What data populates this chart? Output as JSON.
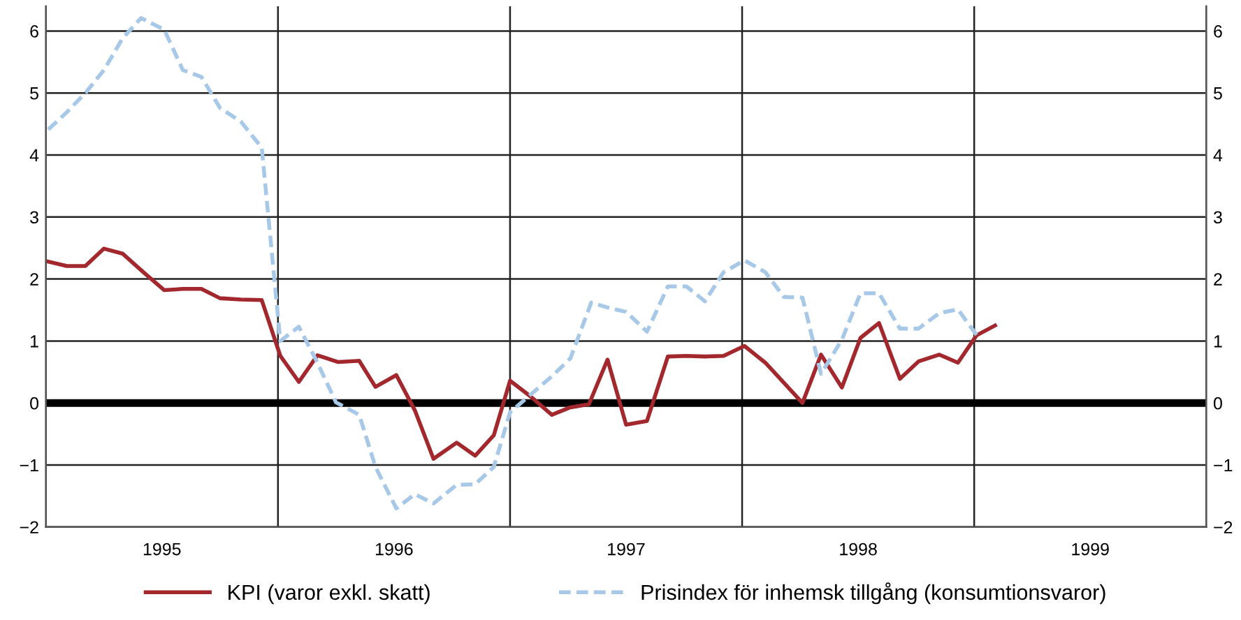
{
  "chart_data": {
    "type": "line",
    "xlim": [
      1995,
      2000
    ],
    "xticks": [
      {
        "value": 1995,
        "label": null
      },
      {
        "value": 1995.5,
        "label": "1995"
      },
      {
        "value": 1996,
        "label": null
      },
      {
        "value": 1996.5,
        "label": "1996"
      },
      {
        "value": 1997,
        "label": null
      },
      {
        "value": 1997.5,
        "label": "1997"
      },
      {
        "value": 1998,
        "label": null
      },
      {
        "value": 1998.5,
        "label": "1998"
      },
      {
        "value": 1999,
        "label": null
      },
      {
        "value": 1999.5,
        "label": "1999"
      },
      {
        "value": 2000,
        "label": null
      }
    ],
    "ylim": [
      -2,
      6.4
    ],
    "yticks": [
      {
        "value": -2,
        "label": "−2"
      },
      {
        "value": -1,
        "label": "−1"
      },
      0,
      1,
      2,
      3,
      4,
      5,
      6
    ],
    "y2lim": [
      -2,
      6.4
    ],
    "y2ticks": [
      {
        "value": -2,
        "label": "−2"
      },
      {
        "value": -1,
        "label": "−1"
      },
      0,
      1,
      2,
      3,
      4,
      5,
      6
    ],
    "grid": true,
    "legend": "bottom",
    "marker": "none",
    "ref_lines": [
      {
        "axis": "y",
        "value": 0,
        "color": "#000000"
      }
    ],
    "series": [
      {
        "name": "KPI (varor exkl. skatt)",
        "color": "#a3282e",
        "line_style": "solid",
        "x": [
          1995.01,
          1995.09,
          1995.17,
          1995.25,
          1995.33,
          1995.42,
          1995.51,
          1995.59,
          1995.67,
          1995.75,
          1995.84,
          1995.93,
          1996.01,
          1996.09,
          1996.17,
          1996.26,
          1996.35,
          1996.42,
          1996.51,
          1996.59,
          1996.67,
          1996.77,
          1996.85,
          1996.93,
          1997.0,
          1997.09,
          1997.18,
          1997.26,
          1997.34,
          1997.42,
          1997.5,
          1997.59,
          1997.68,
          1997.76,
          1997.84,
          1997.92,
          1998.01,
          1998.1,
          1998.26,
          1998.34,
          1998.43,
          1998.51,
          1998.59,
          1998.68,
          1998.76,
          1998.85,
          1998.93,
          1999.01,
          1999.09
        ],
        "values": [
          2.28,
          2.21,
          2.21,
          2.49,
          2.41,
          2.11,
          1.82,
          1.84,
          1.84,
          1.69,
          1.67,
          1.66,
          0.76,
          0.34,
          0.77,
          0.66,
          0.68,
          0.26,
          0.45,
          -0.12,
          -0.9,
          -0.64,
          -0.85,
          -0.52,
          0.36,
          0.1,
          -0.19,
          -0.07,
          -0.02,
          0.7,
          -0.35,
          -0.29,
          0.75,
          0.76,
          0.75,
          0.76,
          0.92,
          0.65,
          0.0,
          0.78,
          0.25,
          1.05,
          1.29,
          0.39,
          0.67,
          0.78,
          0.65,
          1.09,
          1.25
        ]
      },
      {
        "name": "Prisindex för inhemsk tillgång (konsumtionsvaror)",
        "color": "#a8c8e8",
        "line_style": "dashed",
        "x": [
          1995.01,
          1995.09,
          1995.17,
          1995.25,
          1995.33,
          1995.41,
          1995.51,
          1995.59,
          1995.67,
          1995.75,
          1995.84,
          1995.93,
          1996.01,
          1996.09,
          1996.17,
          1996.25,
          1996.35,
          1996.42,
          1996.51,
          1996.59,
          1996.67,
          1996.77,
          1996.85,
          1996.93,
          1997.0,
          1997.09,
          1997.18,
          1997.26,
          1997.35,
          1997.42,
          1997.5,
          1997.59,
          1997.68,
          1997.76,
          1997.84,
          1997.92,
          1998.01,
          1998.1,
          1998.18,
          1998.26,
          1998.34,
          1998.43,
          1998.51,
          1998.59,
          1998.68,
          1998.76,
          1998.85,
          1998.93,
          1999.01
        ],
        "values": [
          4.41,
          4.69,
          5.0,
          5.37,
          5.88,
          6.21,
          6.02,
          5.37,
          5.26,
          4.76,
          4.54,
          4.12,
          1.0,
          1.23,
          0.65,
          0.01,
          -0.19,
          -1.03,
          -1.7,
          -1.47,
          -1.62,
          -1.32,
          -1.31,
          -1.03,
          -0.15,
          0.14,
          0.43,
          0.72,
          1.62,
          1.54,
          1.47,
          1.15,
          1.88,
          1.88,
          1.64,
          2.11,
          2.3,
          2.11,
          1.71,
          1.7,
          0.47,
          1.02,
          1.77,
          1.77,
          1.2,
          1.2,
          1.45,
          1.51,
          1.1
        ]
      }
    ]
  }
}
